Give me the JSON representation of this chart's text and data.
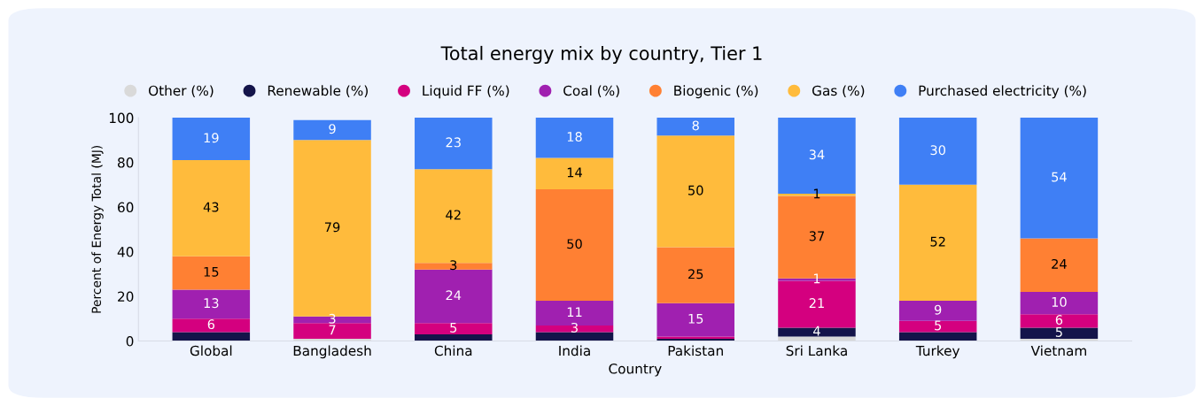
{
  "chart_data": {
    "type": "bar",
    "stacked": true,
    "title": "Total energy mix by country, Tier 1",
    "xlabel": "Country",
    "ylabel": "Percent of Energy Total (MJ)",
    "categories": [
      "Global",
      "Bangladesh",
      "China",
      "India",
      "Pakistan",
      "Sri Lanka",
      "Turkey",
      "Vietnam"
    ],
    "ylim": [
      0,
      100
    ],
    "yticks": [
      0,
      20,
      40,
      60,
      80,
      100
    ],
    "grid": false,
    "legend": "top",
    "series": [
      {
        "name": "Other (%)",
        "color": "#d9d9d9",
        "values": [
          0,
          1,
          0,
          0,
          0,
          2,
          0,
          1
        ],
        "value_labels": [
          null,
          null,
          null,
          null,
          null,
          null,
          null,
          null
        ]
      },
      {
        "name": "Renewable (%)",
        "color": "#14144a",
        "values": [
          4,
          0,
          3,
          4,
          1,
          4,
          4,
          5
        ],
        "value_labels": [
          null,
          null,
          null,
          null,
          null,
          "4",
          null,
          "5"
        ]
      },
      {
        "name": "Liquid FF (%)",
        "color": "#d4007f",
        "values": [
          6,
          7,
          5,
          3,
          1,
          21,
          5,
          6
        ],
        "value_labels": [
          "6",
          "7",
          "5",
          "3",
          null,
          "21",
          "5",
          "6"
        ]
      },
      {
        "name": "Coal (%)",
        "color": "#a020b0",
        "values": [
          13,
          3,
          24,
          11,
          15,
          1,
          9,
          10
        ],
        "value_labels": [
          "13",
          "3",
          "24",
          "11",
          "15",
          "1",
          "9",
          "10"
        ]
      },
      {
        "name": "Biogenic (%)",
        "color": "#ff8033",
        "values": [
          15,
          0,
          3,
          50,
          25,
          37,
          0,
          24
        ],
        "value_labels": [
          "15",
          null,
          "3",
          "50",
          "25",
          "37",
          null,
          "24"
        ]
      },
      {
        "name": "Gas (%)",
        "color": "#ffbb3c",
        "values": [
          43,
          79,
          42,
          14,
          50,
          1,
          52,
          0
        ],
        "value_labels": [
          "43",
          "79",
          "42",
          "14",
          "50",
          "1",
          "52",
          null
        ]
      },
      {
        "name": "Purchased electricity (%)",
        "color": "#3f7ff5",
        "values": [
          19,
          9,
          23,
          18,
          8,
          34,
          30,
          54
        ],
        "value_labels": [
          "19",
          "9",
          "23",
          "18",
          "8",
          "34",
          "30",
          "54"
        ]
      }
    ]
  }
}
